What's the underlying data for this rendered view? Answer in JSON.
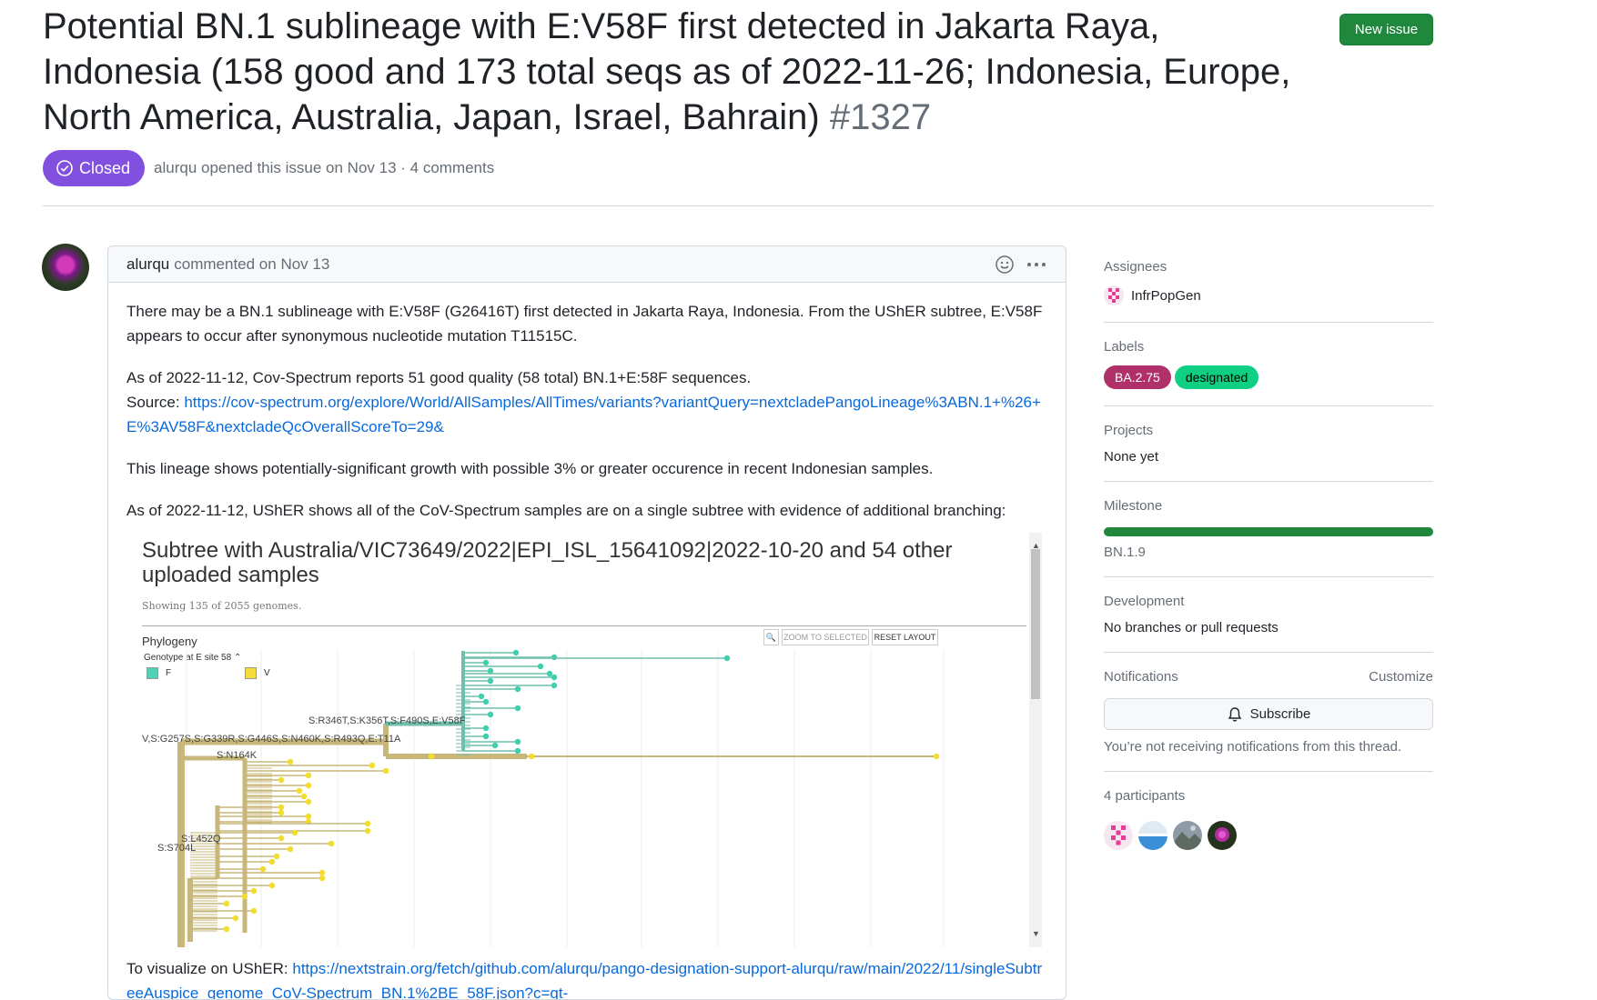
{
  "issue": {
    "title": "Potential BN.1 sublineage with E:V58F first detected in Jakarta Raya, Indonesia (158 good and 173 total seqs as of 2022-11-26; Indonesia, Europe, North America, Australia, Japan, Israel, Bahrain)",
    "number": "#1327",
    "new_issue_label": "New issue",
    "state": "Closed",
    "meta": "alurqu opened this issue on Nov 13 · 4 comments",
    "state_color": "#8250df"
  },
  "comment": {
    "author": "alurqu",
    "action": "commented on Nov 13",
    "para1": "There may be a BN.1 sublineage with E:V58F (G26416T) first detected in Jakarta Raya, Indonesia. From the UShER subtree, E:V58F appears to occur after synonymous nucleotide mutation T11515C.",
    "para2": "As of 2022-11-12, Cov-Spectrum reports 51 good quality (58 total) BN.1+E:58F sequences.",
    "source_prefix": "Source: ",
    "source_link": "https://cov-spectrum.org/explore/World/AllSamples/AllTimes/variants?variantQuery=nextcladePangoLineage%3ABN.1+%26+E%3AV58F&nextcladeQcOverallScoreTo=29&",
    "para3": "This lineage shows potentially-significant growth with possible 3% or greater occurence in recent Indonesian samples.",
    "para4": "As of 2022-11-12, UShER shows all of the CoV-Spectrum samples are on a single subtree with evidence of additional branching:",
    "visualize_prefix": "To visualize on UShER: ",
    "visualize_link": "https://nextstrain.org/fetch/github.com/alurqu/pango-designation-support-alurqu/raw/main/2022/11/singleSubtreeAuspice_genome_CoV-Spectrum_BN.1%2BE_58F.json?c=gt-"
  },
  "embed": {
    "title": "Subtree with Australia/VIC73649/2022|EPI_ISL_15641092|2022-10-20 and 54 other uploaded samples",
    "subtitle": "Showing 135 of 2055 genomes.",
    "phylogeny_label": "Phylogeny",
    "genotype_label": "Genotype at E site 58",
    "legend": [
      {
        "label": "F",
        "color": "#4fd1b5"
      },
      {
        "label": "V",
        "color": "#f5dc3b"
      }
    ],
    "zoom_label": "ZOOM TO SELECTED",
    "reset_label": "RESET LAYOUT",
    "mutations": {
      "m1": "S:R346T,S:K356T,S:F490S,E:V58F",
      "m2": "V,S:G257S,S:G339R,S:G446S,S:N460K,S:R493Q,E:T11A",
      "m3": "S:N164K",
      "m4": "S:L452Q",
      "m5": "S:S704L"
    },
    "colors": {
      "teal": "#6fbfab",
      "teal_tip": "#3fcfae",
      "tan": "#c8b77a",
      "tip_yellow": "#f3dd2c"
    }
  },
  "sidebar": {
    "assignees_label": "Assignees",
    "assignee": "InfrPopGen",
    "labels_label": "Labels",
    "labels": [
      {
        "name": "BA.2.75",
        "bg": "#b0306a",
        "fg": "#ffffff"
      },
      {
        "name": "designated",
        "bg": "#0ecf82",
        "fg": "#000000"
      }
    ],
    "projects_label": "Projects",
    "projects_value": "None yet",
    "milestone_label": "Milestone",
    "milestone_value": "BN.1.9",
    "milestone_progress": 1.0,
    "development_label": "Development",
    "development_value": "No branches or pull requests",
    "notifications_label": "Notifications",
    "customize_label": "Customize",
    "subscribe_label": "Subscribe",
    "notifications_note": "You’re not receiving notifications from this thread.",
    "participants_label": "4 participants"
  }
}
